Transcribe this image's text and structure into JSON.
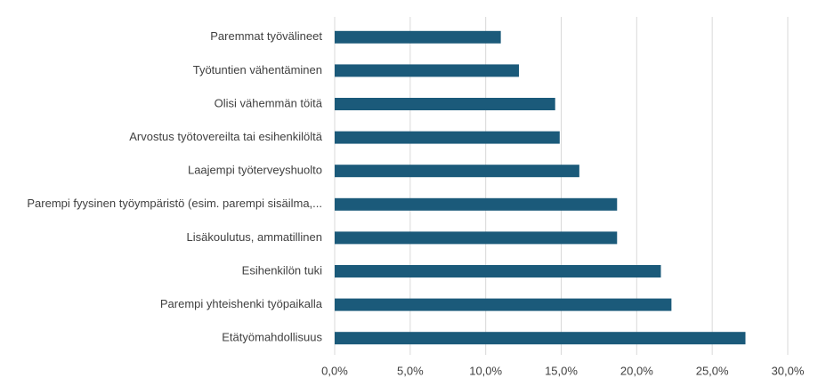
{
  "chart_data": {
    "type": "hbar",
    "categories": [
      "Paremmat työvälineet",
      "Työtuntien vähentäminen",
      "Olisi vähemmän töitä",
      "Arvostus työtovereilta tai esihenkilöltä",
      "Laajempi työterveyshuolto",
      "Parempi fyysinen työympäristö (esim.  parempi sisäilma,...",
      "Lisäkoulutus, ammatillinen",
      "Esihenkilön tuki",
      "Parempi yhteishenki työpaikalla",
      "Etätyömahdollisuus"
    ],
    "values": [
      11.0,
      12.2,
      14.6,
      14.9,
      16.2,
      18.7,
      18.7,
      21.6,
      22.3,
      27.2
    ],
    "color": "#1b5a7a",
    "xlim": [
      0,
      30
    ],
    "xticks": [
      {
        "value": 0,
        "label": "0,0%"
      },
      {
        "value": 5,
        "label": "5,0%"
      },
      {
        "value": 10,
        "label": "10,0%"
      },
      {
        "value": 15,
        "label": "15,0%"
      },
      {
        "value": 20,
        "label": "20,0%"
      },
      {
        "value": 25,
        "label": "25,0%"
      },
      {
        "value": 30,
        "label": "30,0%"
      }
    ],
    "grid": true
  }
}
